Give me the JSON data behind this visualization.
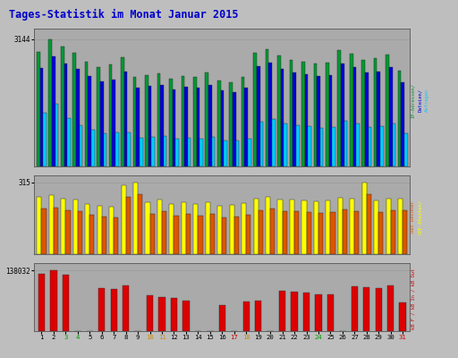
{
  "title": "Tages-Statistik im Monat Januar 2015",
  "title_color": "#0000cc",
  "bg_color": "#bebebe",
  "panel_bg": "#aaaaaa",
  "day_labels": [
    "1",
    "2",
    "3",
    "4",
    "5",
    "6",
    "7",
    "8",
    "9",
    "10",
    "11",
    "12",
    "13",
    "14",
    "15",
    "16",
    "17",
    "18",
    "19",
    "20",
    "21",
    "22",
    "23",
    "24",
    "25",
    "26",
    "27",
    "28",
    "29",
    "30",
    "31"
  ],
  "day_colors": [
    "#000000",
    "#000000",
    "#009900",
    "#009900",
    "#000000",
    "#000000",
    "#000000",
    "#000000",
    "#000000",
    "#cc8800",
    "#cc8800",
    "#000000",
    "#000000",
    "#000000",
    "#000000",
    "#000000",
    "#cc0000",
    "#cc8800",
    "#000000",
    "#000000",
    "#000000",
    "#000000",
    "#000000",
    "#009900",
    "#000000",
    "#000000",
    "#000000",
    "#000000",
    "#000000",
    "#000000",
    "#cc0000"
  ],
  "p1_ytick": "3144",
  "p1_color_anfragen": "#009933",
  "p1_color_dateien": "#0000dd",
  "p1_color_seiten": "#00ccff",
  "anfragen": [
    2820,
    3144,
    2950,
    2810,
    2580,
    2450,
    2520,
    2690,
    2210,
    2260,
    2290,
    2170,
    2240,
    2200,
    2310,
    2120,
    2080,
    2210,
    2800,
    2900,
    2730,
    2620,
    2580,
    2530,
    2560,
    2880,
    2780,
    2620,
    2670,
    2760,
    2360
  ],
  "dateien": [
    2430,
    2720,
    2550,
    2400,
    2220,
    2100,
    2150,
    2340,
    1950,
    1980,
    2010,
    1900,
    1960,
    1940,
    2020,
    1870,
    1840,
    1950,
    2470,
    2570,
    2400,
    2310,
    2270,
    2230,
    2250,
    2540,
    2450,
    2310,
    2350,
    2440,
    2080
  ],
  "seiten": [
    1330,
    1550,
    1200,
    1010,
    900,
    810,
    830,
    850,
    700,
    720,
    740,
    680,
    700,
    690,
    730,
    650,
    630,
    690,
    1100,
    1170,
    1060,
    1010,
    990,
    960,
    980,
    1120,
    1060,
    970,
    990,
    1050,
    820
  ],
  "p2_ytick": "315",
  "p2_color_out": "#ffff00",
  "p2_color_in": "#dd5500",
  "out_kB": [
    250,
    260,
    245,
    240,
    220,
    210,
    208,
    300,
    315,
    228,
    238,
    220,
    228,
    220,
    228,
    210,
    215,
    222,
    245,
    252,
    240,
    238,
    235,
    232,
    234,
    248,
    242,
    315,
    236,
    242,
    244
  ],
  "in_kB": [
    198,
    205,
    192,
    188,
    172,
    165,
    162,
    250,
    262,
    178,
    188,
    170,
    178,
    170,
    178,
    162,
    165,
    172,
    194,
    200,
    190,
    188,
    185,
    182,
    184,
    196,
    190,
    262,
    186,
    192,
    194
  ],
  "p3_ytick": "138032",
  "p3_color": "#dd0000",
  "rechner": [
    130000,
    138032,
    128000,
    0,
    0,
    98000,
    96000,
    104000,
    0,
    82000,
    78000,
    75000,
    70000,
    0,
    0,
    60000,
    0,
    67000,
    70000,
    0,
    92000,
    90000,
    88000,
    84000,
    84000,
    0,
    102000,
    100000,
    97000,
    104000,
    65000
  ]
}
